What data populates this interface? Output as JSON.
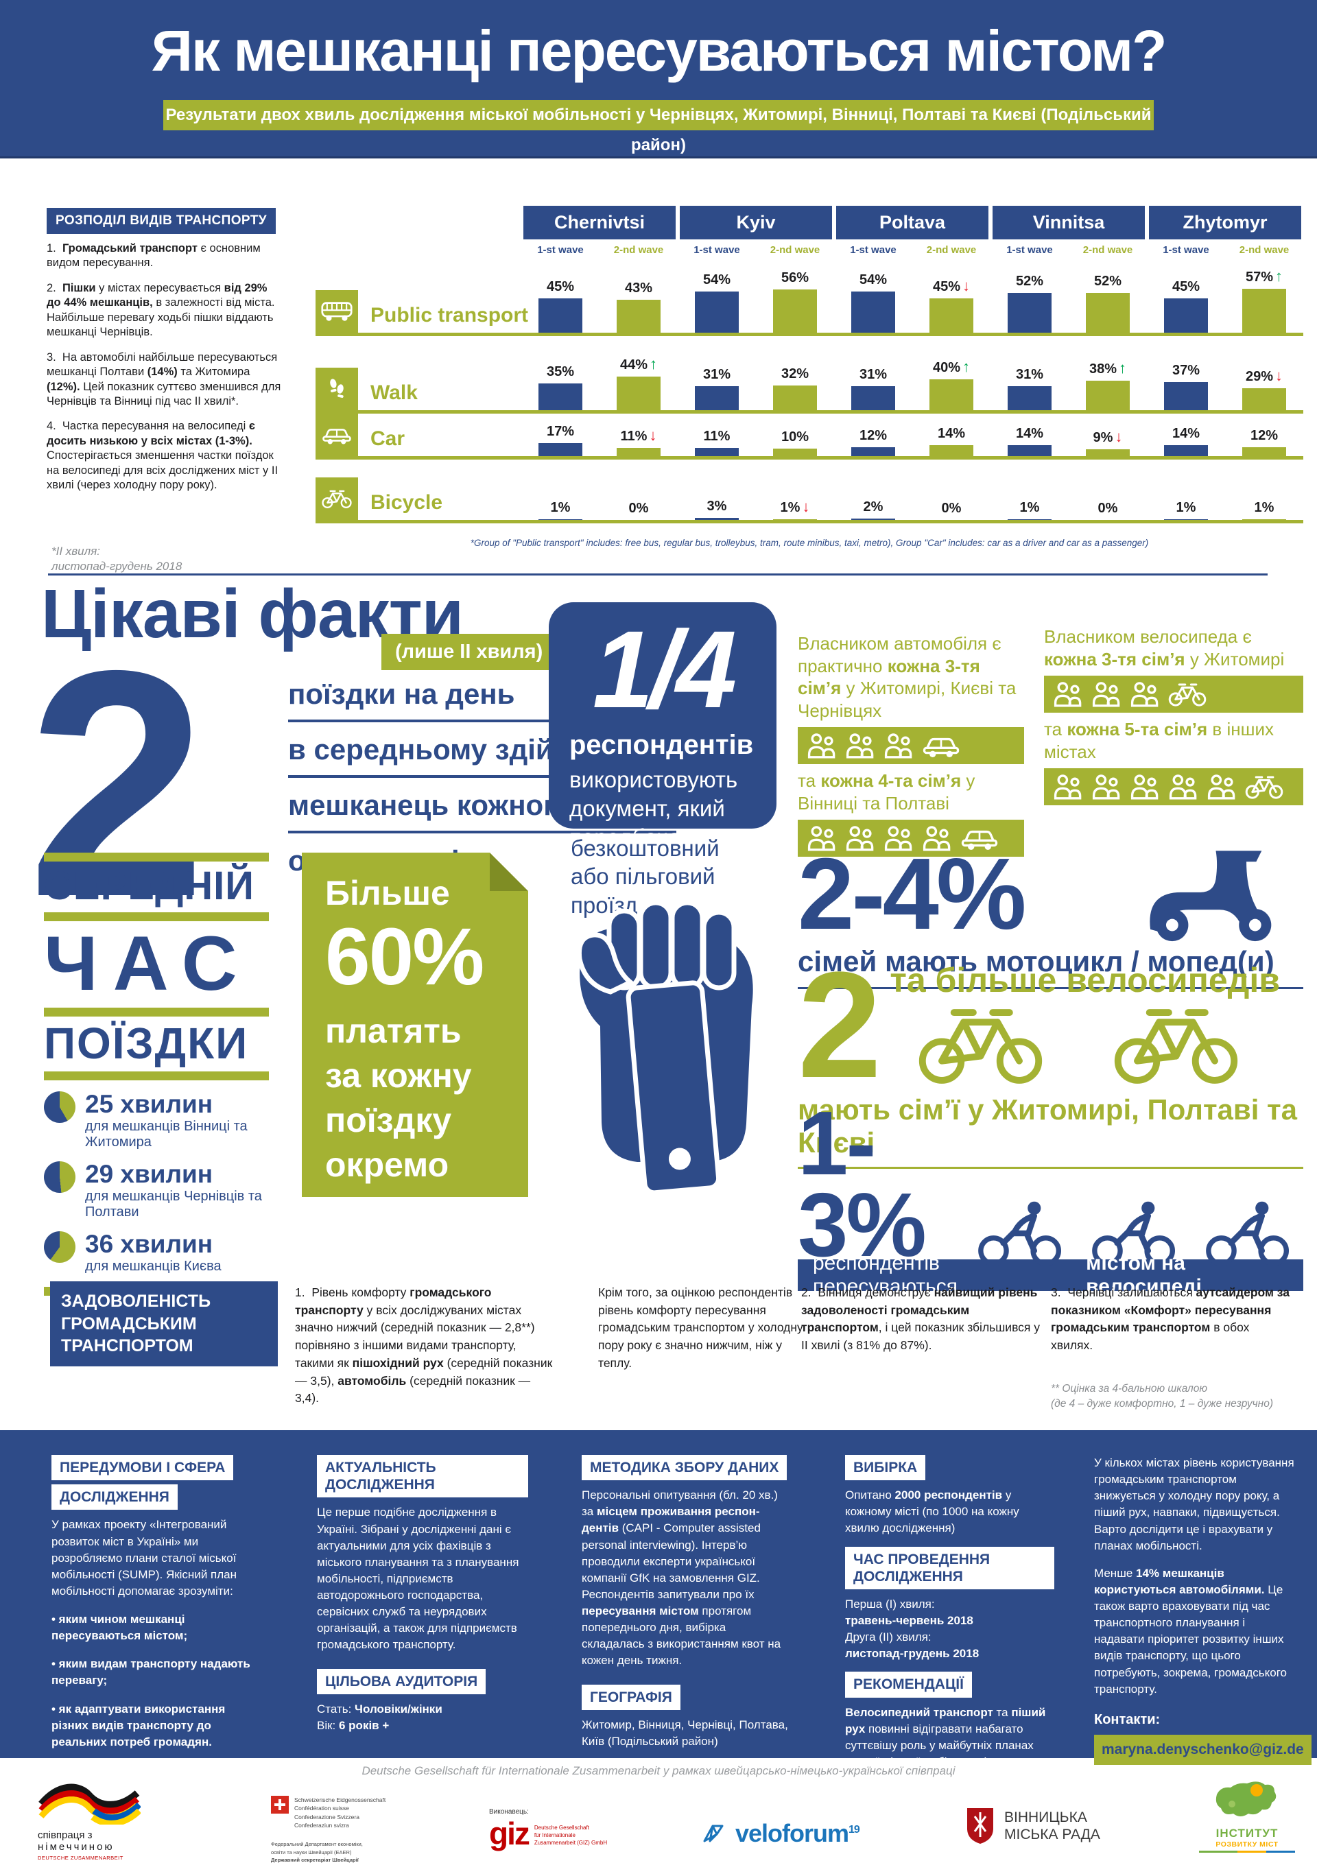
{
  "colors": {
    "blue": "#2e4b88",
    "green": "#a4b233",
    "arrow_up": "#00a651",
    "arrow_down": "#e8212e",
    "text": "#1d1d1f",
    "gray": "#8a8d90"
  },
  "header": {
    "title": "Як мешканці пересуваються містом?",
    "subtitle": "Результати двох хвиль дослідження міської мобільності у Чернівцях, Житомирі, Вінниці, Полтаві та Києві (Подільський район)"
  },
  "modal_split": {
    "section_title": "РОЗПОДІЛ ВИДІВ ТРАНСПОРТУ",
    "notes": [
      "1.&nbsp;&nbsp;<b>Громадський транспорт</b> є основним видом пересування.",
      "2.&nbsp;&nbsp;<b>Пішки</b> у містах пересувається <b>від 29% до 44% мешканців,</b> в залежності від міста. Найбільше перевагу ходьбі пішки віддають мешканці Чернівців.",
      "3.&nbsp;&nbsp;На автомобілі найбільше пересуваються мешканці Полтави <b>(14%)</b> та Житомира <b>(12%).</b> Цей показник суттєво зменшився для Чернівців та Вінниці під час ІІ хвилі*.",
      "4.&nbsp;&nbsp;Частка пересування на велосипеді <b>є досить низькою у всіх містах (1-3%).</b> Спостерігається зменшення частки поїздок на велосипеді для всіх досліджених міст у ІІ хвилі (через холодну пору року)."
    ],
    "wave_note": "*ІІ хвиля:<br>листопад-грудень 2018",
    "chart_footnote": "*Group of \"Public transport\" includes: free bus, regular bus, trolleybus, tram, route minibus, taxi, metro), Group \"Car\" includes: car as a driver and car as a passenger)"
  },
  "chart_data": {
    "type": "bar",
    "title": "РОЗПОДІЛ ВИДІВ ТРАНСПОРТУ",
    "unit": "%",
    "ylim": [
      0,
      60
    ],
    "categories": [
      "Chernivtsi",
      "Kyiv",
      "Poltava",
      "Vinnitsa",
      "Zhytomyr"
    ],
    "wave_labels": [
      "1-st wave",
      "2-nd wave"
    ],
    "series_colors": {
      "wave1": "#2e4b88",
      "wave2": "#a4b233"
    },
    "rows": [
      {
        "label": "Public transport",
        "icon": "bus-icon",
        "values": [
          {
            "city": "Chernivtsi",
            "wave1": 45,
            "wave2": 43,
            "trend": null
          },
          {
            "city": "Kyiv",
            "wave1": 54,
            "wave2": 56,
            "trend": null
          },
          {
            "city": "Poltava",
            "wave1": 54,
            "wave2": 45,
            "trend": "down"
          },
          {
            "city": "Vinnitsa",
            "wave1": 52,
            "wave2": 52,
            "trend": null
          },
          {
            "city": "Zhytomyr",
            "wave1": 45,
            "wave2": 57,
            "trend": "up"
          }
        ]
      },
      {
        "label": "Walk",
        "icon": "walk-icon",
        "values": [
          {
            "city": "Chernivtsi",
            "wave1": 35,
            "wave2": 44,
            "trend": "up"
          },
          {
            "city": "Kyiv",
            "wave1": 31,
            "wave2": 32,
            "trend": null
          },
          {
            "city": "Poltava",
            "wave1": 31,
            "wave2": 40,
            "trend": "up"
          },
          {
            "city": "Vinnitsa",
            "wave1": 31,
            "wave2": 38,
            "trend": "up"
          },
          {
            "city": "Zhytomyr",
            "wave1": 37,
            "wave2": 29,
            "trend": "down"
          }
        ]
      },
      {
        "label": "Car",
        "icon": "car-icon",
        "values": [
          {
            "city": "Chernivtsi",
            "wave1": 17,
            "wave2": 11,
            "trend": "down"
          },
          {
            "city": "Kyiv",
            "wave1": 11,
            "wave2": 10,
            "trend": null
          },
          {
            "city": "Poltava",
            "wave1": 12,
            "wave2": 14,
            "trend": null
          },
          {
            "city": "Vinnitsa",
            "wave1": 14,
            "wave2": 9,
            "trend": "down"
          },
          {
            "city": "Zhytomyr",
            "wave1": 14,
            "wave2": 12,
            "trend": null
          }
        ]
      },
      {
        "label": "Bicycle",
        "icon": "bicycle-icon",
        "values": [
          {
            "city": "Chernivtsi",
            "wave1": 1,
            "wave2": 0,
            "trend": null
          },
          {
            "city": "Kyiv",
            "wave1": 3,
            "wave2": 1,
            "trend": "down"
          },
          {
            "city": "Poltava",
            "wave1": 2,
            "wave2": 0,
            "trend": null
          },
          {
            "city": "Vinnitsa",
            "wave1": 1,
            "wave2": 0,
            "trend": null
          },
          {
            "city": "Zhytomyr",
            "wave1": 1,
            "wave2": 1,
            "trend": null
          }
        ]
      }
    ]
  },
  "facts": {
    "title": "Цікаві факти",
    "tag": "(лише ІІ хвиля)",
    "trips": {
      "number": "2",
      "lines": [
        "поїздки на день",
        "в середньому здійснює",
        "мешканець кожного з",
        "опитаних міст"
      ]
    },
    "avg_time": {
      "words": [
        "СЕРЕДНІЙ",
        "ЧАС",
        "ПОЇЗДКИ"
      ],
      "items": [
        {
          "label": "25 хвилин",
          "minutes": 25,
          "desc": "для мешканців Вінниці та Житомира"
        },
        {
          "label": "29 хвилин",
          "minutes": 29,
          "desc": "для мешканців Чернівців та Полтави"
        },
        {
          "label": "36 хвилин",
          "minutes": 36,
          "desc": "для мешканців Києва"
        }
      ]
    },
    "pay": {
      "word1": "Більше",
      "big": "60%",
      "rest": "платять<br>за кожну<br>поїздку<br>окремо"
    },
    "quarter": {
      "number": "1/4",
      "label": "респондентів",
      "text": "використовують документ, який передбачає",
      "below": "безкоштовний або пільговий проїзд"
    },
    "car_own": {
      "text1": "Власником автомобіля є практично <b>кожна 3-тя сім’я</b> у Житомирі, Києві та Чернівцях",
      "bar1": {
        "families": 3,
        "vehicle": "car-icon"
      },
      "text2": "та <b>кожна 4-та сім’я</b> у Вінниці та Полтаві",
      "bar2": {
        "families": 4,
        "vehicle": "car-icon"
      }
    },
    "bike_own": {
      "text1": "Власником велосипеда є <b>кожна 3-тя сім’я</b> у Житомирі",
      "bar1": {
        "families": 3,
        "vehicle": "bicycle-icon"
      },
      "text2": "та <b>кожна 5-та сім’я</b> в інших містах",
      "bar2": {
        "families": 5,
        "vehicle": "bicycle-icon"
      }
    },
    "moped": {
      "number": "2-4%",
      "caption": "сімей мають мотоцикл / мопед(и)"
    },
    "two_bikes": {
      "number": "2",
      "caption": "та більше велосипедів",
      "sub": "мають сім’ї у Житомирі, Полтаві та Києві"
    },
    "cyclists": {
      "number": "1-3%",
      "caption": "респондентів пересуваються <b>містом на велосипеді</b>"
    }
  },
  "satisfaction": {
    "title": "ЗАДОВОЛЕНІСТЬ ГРОМАДСЬКИМ ТРАНСПОРТОМ",
    "cols": [
      "1.&nbsp;&nbsp;Рівень комфорту <b>громадського транспорту</b> у всіх досліджуваних містах значно нижчий (середній показник — 2,8**) порівняно з іншими видами транспорту, такими як <b>пішохідний рух</b> (середній показник — 3,5), <b>автомобіль</b> (середній показник — 3,4).",
      "Крім того, за оцінкою респондентів рівень комфорту пересування громадським транспортом у холодну пору року є значно нижчим, ніж у теплу.",
      "2.&nbsp;&nbsp;Вінниця демонструє <b>найвищий рівень задоволеності громадським транспортом</b>, і цей показник збільшився у ІІ хвилі (з 81% до 87%).",
      "3.&nbsp;&nbsp;Чернівці залишаються <b>аутсайдером за показником «Комфорт» пересування громадським транспортом</b> в обох хвилях."
    ],
    "footnote": "** Оцінка за 4-бальною шкалою\n     (де 4 – дуже комфортно, 1 – дуже незручно)"
  },
  "panel": {
    "col1": {
      "header1": "ПЕРЕДУМОВИ І СФЕРА",
      "header2": "ДОСЛІДЖЕННЯ",
      "intro": "У рамках проекту «Інтегрований розвиток міст в Україні» ми розробляємо плани сталої міської мобільності (SUMP). Якісний план мобільності допомагає зрозуміти:",
      "bullets": "<p><b>• яким чином мешканці пересуваються містом;</b></p><p><b>• яким видам транспорту надають перевагу;</b></p><p><b>• як адаптувати використання різних видів транспорту до реальних потреб громадян.</b></p>"
    },
    "col2": {
      "header1": "АКТУАЛЬНІСТЬ ДОСЛІДЖЕННЯ",
      "body1": "Це перше подібне дослідження в Україні. Зібрані у дослідженні дані є актуальними для усіх фахівців з міського планування та з планування мобільності, підприємств автодорожнього господарства, сервісних служб та неурядових організацій, а також для підприємств громадського транспорту.",
      "header2": "ЦІЛЬОВА АУДИТОРІЯ",
      "body2": "Стать: <b>Чоловіки/жінки</b><br>Вік: <b>6 років +</b>"
    },
    "col3": {
      "header1": "МЕТОДИКА ЗБОРУ ДАНИХ",
      "body1": "Персональні опитування (бл. 20 хв.) за <b>місцем проживання респон-дентів</b> (CAPI - Computer assisted personal interviewing). Інтерв’ю проводили експерти української компанії GfK на замовлення GIZ. Респондентів запитували про їх <b>пересування містом</b> протягом попереднього дня, вибірка складалась з використанням квот на кожен день тижня.",
      "header2": "ГЕОГРАФІЯ",
      "body2": "Житомир, Вінниця, Чернівці, Полтава, Київ (Подільський район)"
    },
    "col4": {
      "header1": "ВИБІРКА",
      "body1": "Опитано <b>2000 респондентів</b> у кожному місті (по 1000 на кожну хвилю дослідження)",
      "header2": "ЧАС ПРОВЕДЕННЯ ДОСЛІДЖЕННЯ",
      "body2": "Перша (І) хвиля:<br><b>травень-червень 2018</b><br>Друга (ІІ) хвиля:<br><b>листопад-грудень 2018</b>",
      "header3": "РЕКОМЕНДАЦІЇ",
      "body3": "<b>Велосипедний транспорт</b> та <b>піший рух</b> повинні відігравати набагато суттєвішу роль у майбутніх планах сталої міської мобільності."
    },
    "col5": {
      "p1": "У кількох містах рівень користування громадським транспортом знижується у холодну пору року, а піший рух, навпаки, підвищується. Варто дослідити це і врахувати у планах мобільності.",
      "p2": "Менше <b>14% мешканців користуються автомобілями.</b> Це також варто враховувати під час транспортного планування і надавати пріоритет розвитку інших видів транспорту, що цього потребують, зокрема, громадського транспорту.",
      "contacts_label": "Контакти:",
      "email": "maryna.denyschenko@giz.de"
    }
  },
  "footer": {
    "caption": "Deutsche Gesellschaft für Internationale Zusammenarbeit у рамках швейцарсько-німецько-української співпраці",
    "german": {
      "line1": "співпраця з",
      "line2": "німеччиною",
      "line3": "DEUTSCHE ZUSAMMENARBEIT"
    },
    "swiss": {
      "lines": [
        "Schweizerische Eidgenossenschaft",
        "Confédération suisse",
        "Confederazione Svizzera",
        "Confederaziun svizra"
      ],
      "sub": "Федеральний Департамент економіки,<br>освіти та науки Швейцарії (EAER)<br><b>Державний секретаріат Швейцарії<br>з економічних питань (SECO)</b>"
    },
    "giz": {
      "label": "Виконавець:",
      "name": "giz",
      "sub": "Deutsche Gesellschaft<br>für Internationale<br>Zusammenarbeit (GIZ) GmbH"
    },
    "veloforum": {
      "name": "veloforum",
      "sup": "19"
    },
    "vinnytsia": {
      "line1": "ВІННИЦЬКА",
      "line2": "МІСЬКА РАДА"
    },
    "institute": {
      "line1": "ІНСТИТУТ",
      "line2": "РОЗВИТКУ МІСТ"
    }
  },
  "icons": {
    "bus": "bus-icon",
    "walk": "walk-icon",
    "car": "car-icon",
    "bicycle": "bicycle-icon",
    "family": "family-icon",
    "scooter": "scooter-icon",
    "cyclist": "cyclist-icon",
    "hand_ticket": "hand-ticket-icon",
    "pie": "pie-chart-icon",
    "fold": "folded-corner-icon"
  }
}
